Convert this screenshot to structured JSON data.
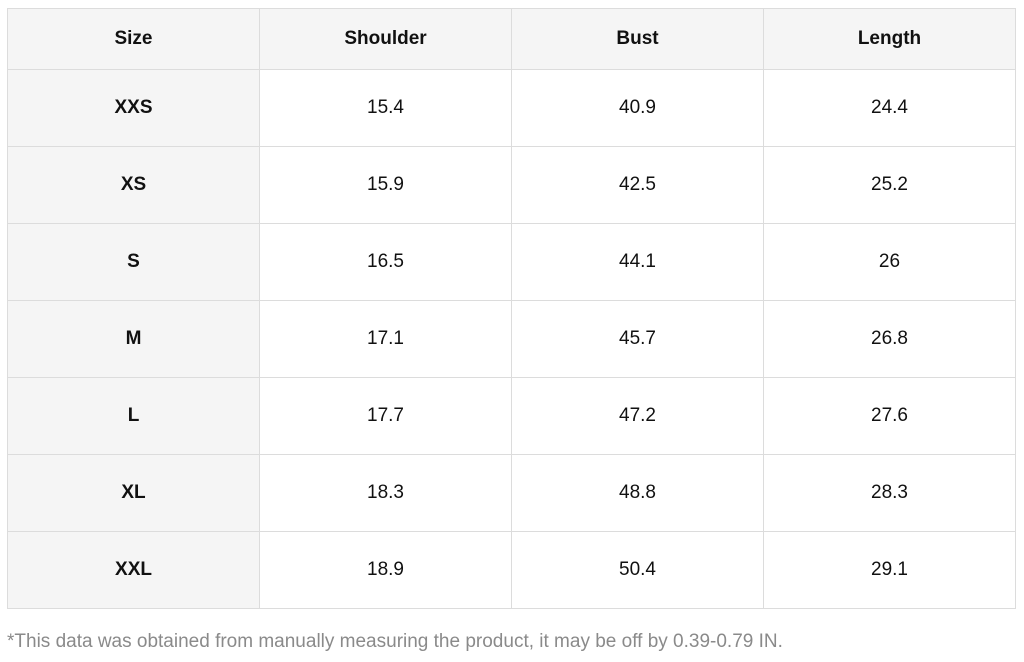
{
  "table": {
    "header": [
      "Size",
      "Shoulder",
      "Bust",
      "Length"
    ],
    "rows": [
      [
        "XXS",
        15.4,
        40.9,
        24.4
      ],
      [
        "XS",
        15.9,
        42.5,
        25.2
      ],
      [
        "S",
        16.5,
        44.1,
        26
      ],
      [
        "M",
        17.1,
        45.7,
        26.8
      ],
      [
        "L",
        17.7,
        47.2,
        27.6
      ],
      [
        "XL",
        18.3,
        48.8,
        28.3
      ],
      [
        "XXL",
        18.9,
        50.4,
        29.1
      ]
    ]
  },
  "footnote": "*This data was obtained from manually measuring the product, it may be off by 0.39-0.79 IN."
}
